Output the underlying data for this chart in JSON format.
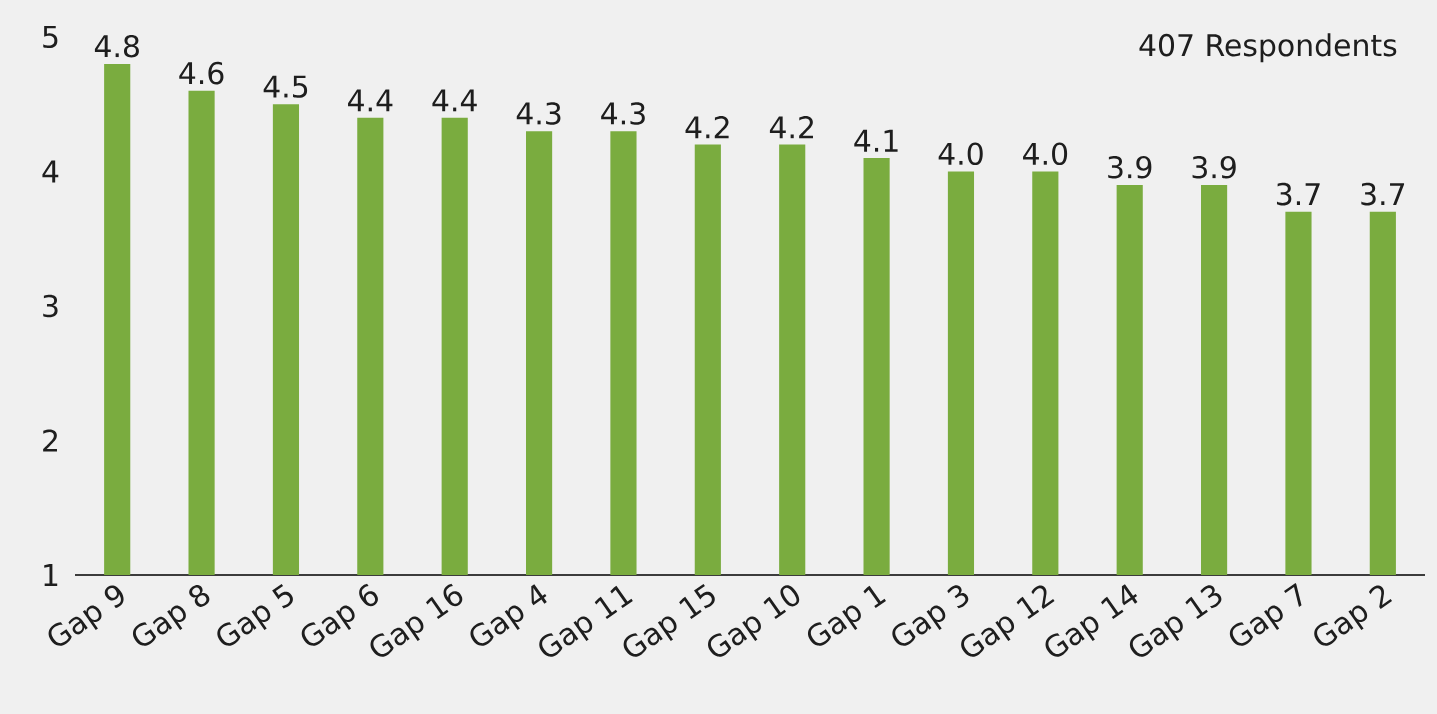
{
  "chart_data": {
    "type": "bar",
    "categories": [
      "Gap 9",
      "Gap 8",
      "Gap 5",
      "Gap 6",
      "Gap 16",
      "Gap 4",
      "Gap 11",
      "Gap 15",
      "Gap 10",
      "Gap 1",
      "Gap 3",
      "Gap 12",
      "Gap 14",
      "Gap 13",
      "Gap 7",
      "Gap 2"
    ],
    "values": [
      4.8,
      4.6,
      4.5,
      4.4,
      4.4,
      4.3,
      4.3,
      4.2,
      4.2,
      4.1,
      4.0,
      4.0,
      3.9,
      3.9,
      3.7,
      3.7
    ],
    "color": "#7aac3f",
    "ylim": [
      1,
      5
    ],
    "yticks": [
      1,
      2,
      3,
      4,
      5
    ],
    "value_labels": [
      "4.8",
      "4.6",
      "4.5",
      "4.4",
      "4.4",
      "4.3",
      "4.3",
      "4.2",
      "4.2",
      "4.1",
      "4.0",
      "4.0",
      "3.9",
      "3.9",
      "3.7",
      "3.7"
    ],
    "annotations": [
      "407 Respondents"
    ]
  }
}
